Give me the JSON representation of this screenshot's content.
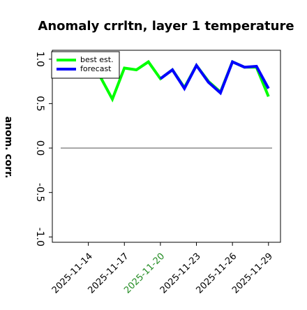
{
  "chart_data": {
    "type": "line",
    "title": "Anomaly crrltn, layer 1 temperature",
    "y_label": "anom. corr.",
    "x": [
      "2025-11-15",
      "2025-11-16",
      "2025-11-17",
      "2025-11-18",
      "2025-11-19",
      "2025-11-20",
      "2025-11-21",
      "2025-11-22",
      "2025-11-23",
      "2025-11-24",
      "2025-11-25",
      "2025-11-26",
      "2025-11-27",
      "2025-11-28",
      "2025-11-29"
    ],
    "series": [
      {
        "name": "best est.",
        "color": "#00ff00",
        "values": [
          0.8,
          0.55,
          0.9,
          0.88,
          0.97,
          0.78,
          0.88,
          0.68,
          0.93,
          0.75,
          0.63,
          0.97,
          0.91,
          0.91,
          0.58
        ]
      },
      {
        "name": "forecast",
        "color": "#0000ff",
        "values": [
          null,
          null,
          null,
          null,
          null,
          0.78,
          0.88,
          0.67,
          0.93,
          0.74,
          0.62,
          0.97,
          0.91,
          0.92,
          0.67
        ]
      }
    ],
    "xlim": [
      "2025-11-11",
      "2025-11-30"
    ],
    "xticks": [
      "2025-11-14",
      "2025-11-17",
      "2025-11-20",
      "2025-11-23",
      "2025-11-26",
      "2025-11-29"
    ],
    "xtick_colors": [
      "#000000",
      "#000000",
      "#228b22",
      "#000000",
      "#000000",
      "#000000"
    ],
    "ylim": [
      -1.06,
      1.1
    ],
    "yticks": [
      {
        "value": -1,
        "label": "-1.0"
      },
      {
        "value": -0.5,
        "label": "-0.5"
      },
      {
        "value": 0,
        "label": "0.0"
      },
      0.5,
      {
        "value": 1,
        "label": "1.0"
      }
    ],
    "hline": 0,
    "legend": "upper left"
  }
}
